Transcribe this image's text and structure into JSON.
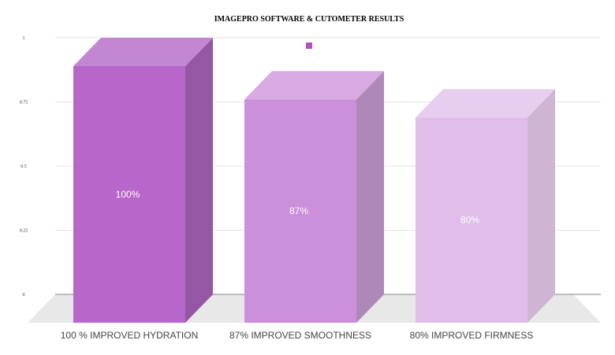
{
  "chart_data": {
    "type": "bar",
    "title": "IMAGEPRO SOFTWARE & CUTOMETER RESULTS",
    "categories": [
      "100 % IMPROVED HYDRATION",
      "87% IMPROVED SMOOTHNESS",
      "80% IMPROVED FIRMNESS"
    ],
    "values": [
      1.0,
      0.87,
      0.8
    ],
    "data_labels": [
      "100%",
      "87%",
      "80%"
    ],
    "y_ticks": [
      "0",
      "0.25",
      "0.5",
      "0.75",
      "1"
    ],
    "ylim": [
      0,
      1
    ],
    "grid": true,
    "legend_position": "top-center",
    "colors": {
      "bars": [
        "#b766c9",
        "#cc8fda",
        "#e0bde9"
      ],
      "bar_sides": [
        "#9457a3",
        "#ae88b8",
        "#cdb5d3"
      ],
      "bar_tops": [
        "#c386d2",
        "#d8a9e2",
        "#e7cdee"
      ],
      "floor": "#e8e8e8",
      "grid": "#e3e3e3",
      "axis": "#999999",
      "legend_marker": "#b14fc6"
    }
  }
}
